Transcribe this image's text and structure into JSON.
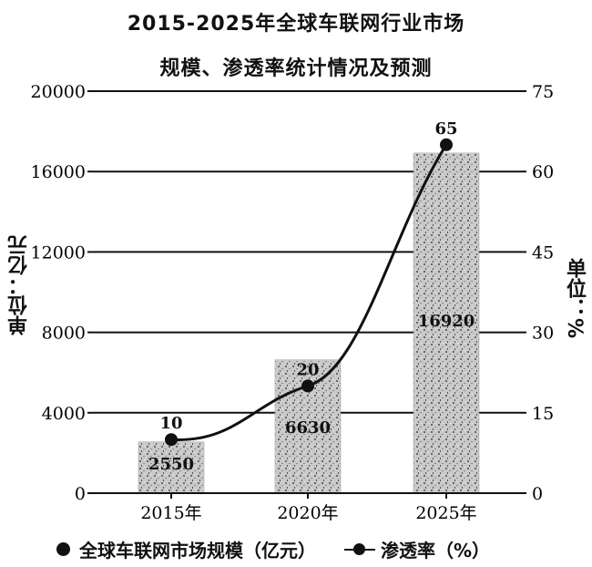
{
  "title_line1": "2015-2025年全球车联网行业市场",
  "title_line2": "规模、渗透率统计情况及预测",
  "left_axis_title": "单位：亿元",
  "right_axis_title": "单位：%",
  "legend": {
    "bar_label": "全球车联网市场规模（亿元）",
    "line_label": "渗透率（%）"
  },
  "chart_data": {
    "type": "bar",
    "categories": [
      "2015年",
      "2020年",
      "2025年"
    ],
    "series": [
      {
        "name": "全球车联网市场规模（亿元）",
        "type": "bar",
        "axis": "left",
        "values": [
          2550,
          6630,
          16920
        ]
      },
      {
        "name": "渗透率（%）",
        "type": "line",
        "axis": "right",
        "values": [
          10,
          20,
          65
        ]
      }
    ],
    "y_left": {
      "min": 0,
      "max": 20000,
      "ticks": [
        0,
        4000,
        8000,
        12000,
        16000,
        20000
      ]
    },
    "y_right": {
      "min": 0,
      "max": 75,
      "ticks": [
        0,
        15,
        30,
        45,
        60,
        75
      ]
    },
    "grid": true,
    "legend_position": "bottom",
    "colors": {
      "bar": "#a8a8a8",
      "line": "#111111"
    }
  }
}
